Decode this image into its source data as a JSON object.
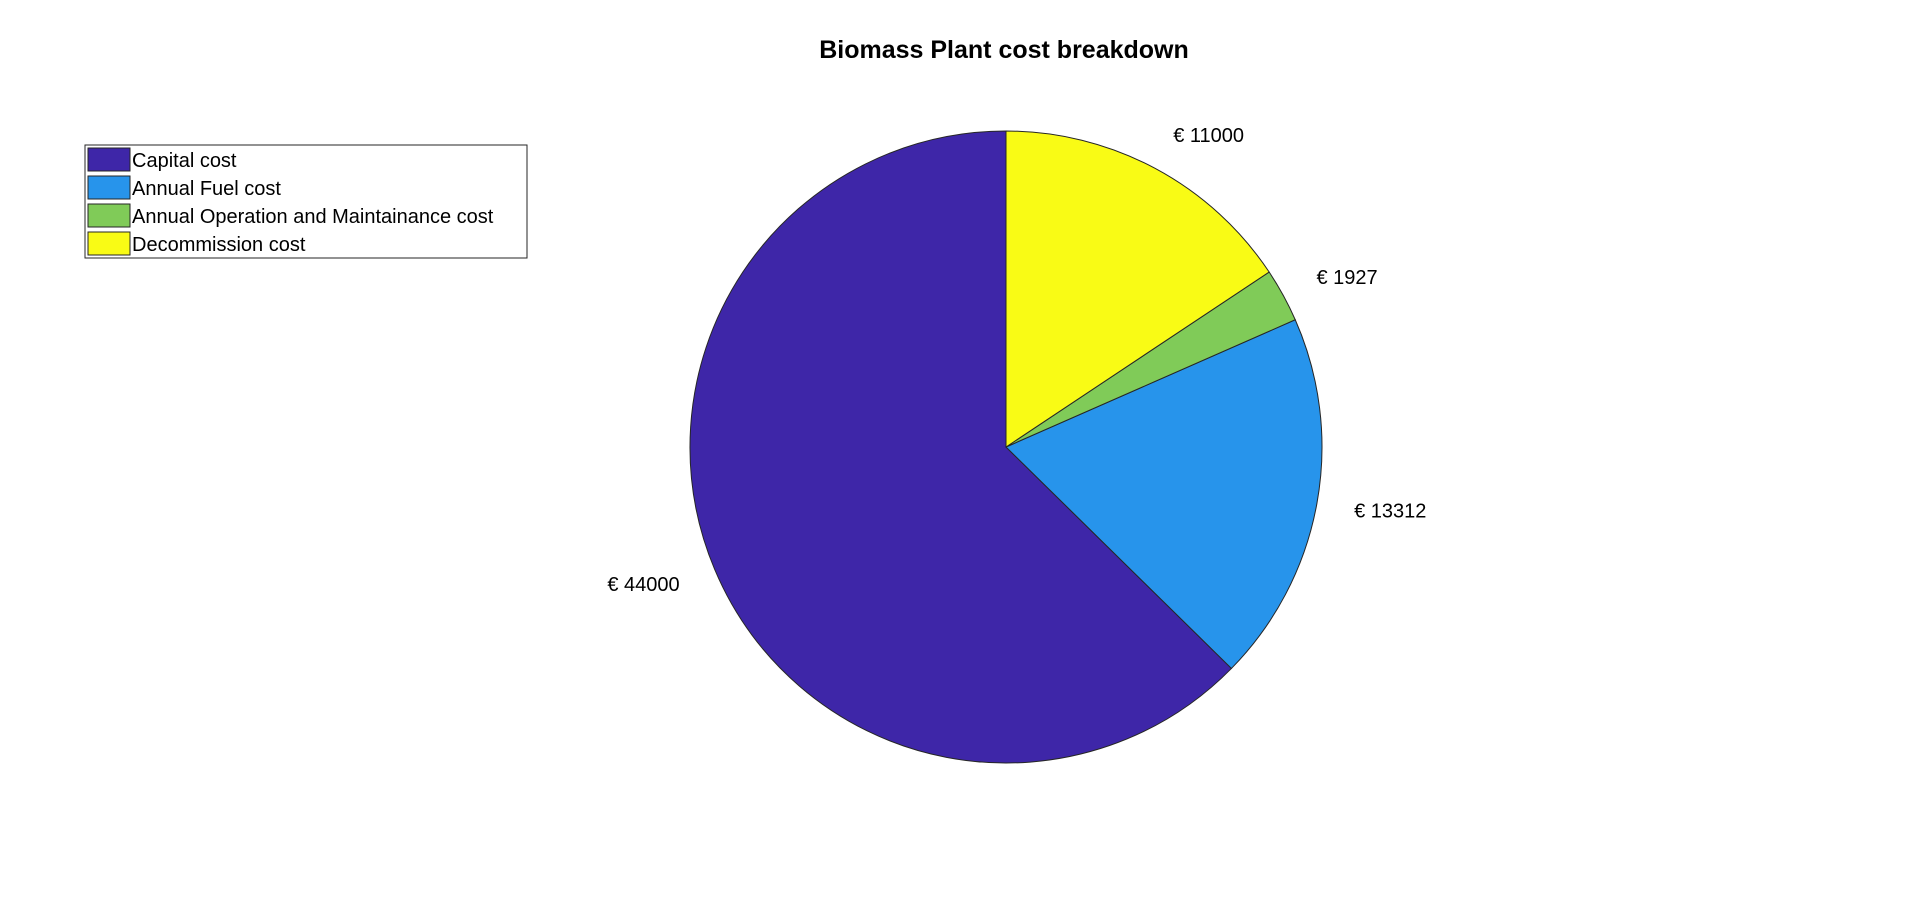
{
  "chart_data": {
    "type": "pie",
    "title": "Biomass Plant cost breakdown",
    "currency_symbol": "€",
    "slices": [
      {
        "name": "Capital cost",
        "value": 44000,
        "label": "€ 44000",
        "color": "#3e26a8"
      },
      {
        "name": "Annual Fuel cost",
        "value": 13312,
        "label": "€ 13312",
        "color": "#2794eb"
      },
      {
        "name": "Annual Operation and Maintainance cost",
        "value": 1927,
        "label": "€ 1927",
        "color": "#80cb58"
      },
      {
        "name": "Decommission cost",
        "value": 11000,
        "label": "€ 11000",
        "color": "#f9fb15"
      }
    ],
    "start_angle_deg": 90,
    "direction": "counterclockwise",
    "legend_position": "top-left"
  }
}
